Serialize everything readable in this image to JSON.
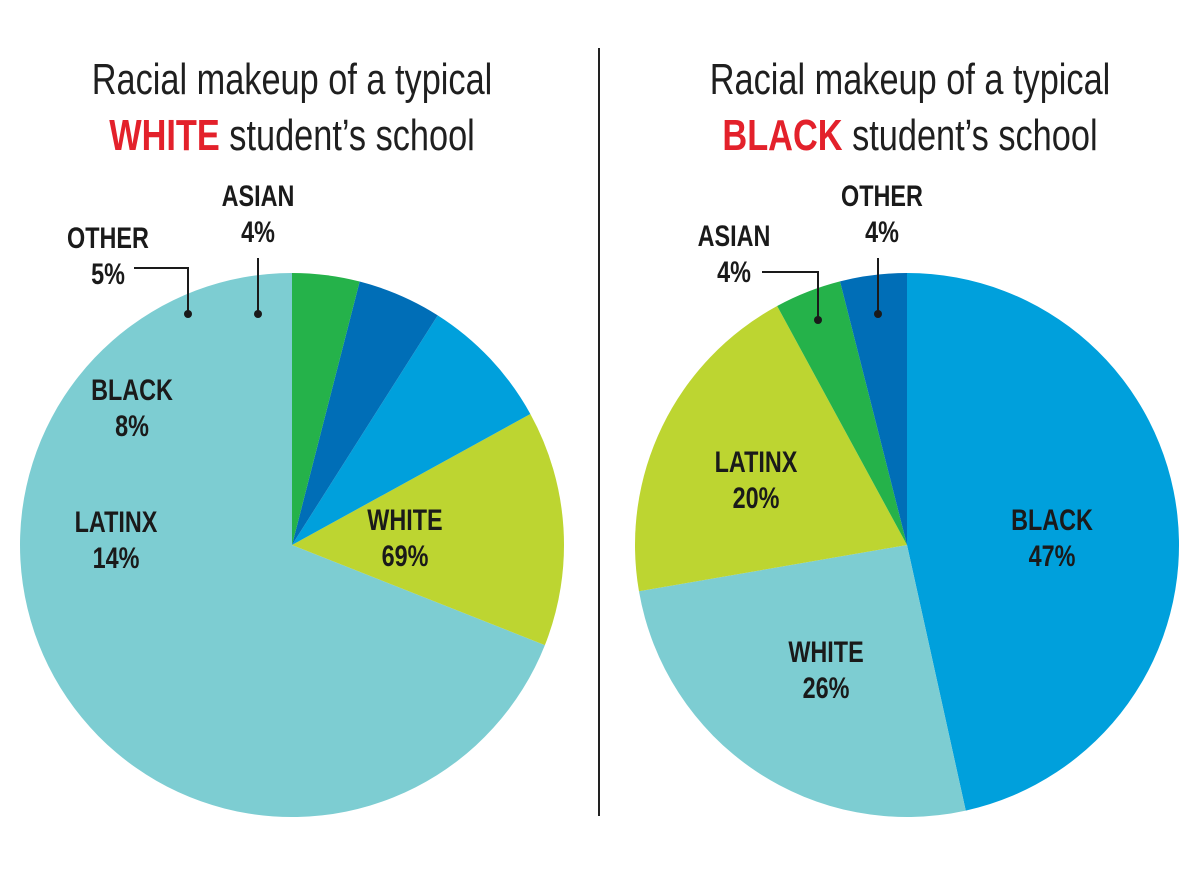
{
  "chart_data": [
    {
      "type": "pie",
      "title_line1": "Racial makeup of a typical",
      "title_emph": "WHITE",
      "title_rest": " student’s school",
      "colors": {
        "title_emph": "#e3212b"
      },
      "slices": [
        {
          "label": "WHITE",
          "value": 69,
          "value_text": "69%",
          "color": "#7dcdd2"
        },
        {
          "label": "LATINX",
          "value": 14,
          "value_text": "14%",
          "color": "#bdd531"
        },
        {
          "label": "BLACK",
          "value": 8,
          "value_text": "8%",
          "color": "#00a0dc"
        },
        {
          "label": "OTHER",
          "value": 5,
          "value_text": "5%",
          "color": "#006eb7"
        },
        {
          "label": "ASIAN",
          "value": 4,
          "value_text": "4%",
          "color": "#25b24a"
        }
      ]
    },
    {
      "type": "pie",
      "title_line1": "Racial makeup of a typical",
      "title_emph": "BLACK",
      "title_rest": " student’s school",
      "colors": {
        "title_emph": "#e3212b"
      },
      "slices": [
        {
          "label": "BLACK",
          "value": 47,
          "value_text": "47%",
          "color": "#00a0dc"
        },
        {
          "label": "WHITE",
          "value": 26,
          "value_text": "26%",
          "color": "#7dcdd2"
        },
        {
          "label": "LATINX",
          "value": 20,
          "value_text": "20%",
          "color": "#bdd531"
        },
        {
          "label": "ASIAN",
          "value": 4,
          "value_text": "4%",
          "color": "#25b24a"
        },
        {
          "label": "OTHER",
          "value": 4,
          "value_text": "4%",
          "color": "#006eb7"
        }
      ]
    }
  ]
}
